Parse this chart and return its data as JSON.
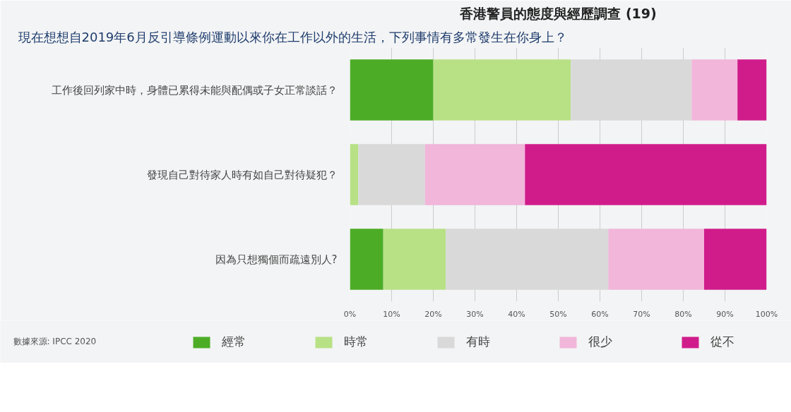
{
  "chart_data": {
    "type": "bar",
    "orientation": "horizontal",
    "stacked": true,
    "title": "香港警員的態度與經歷調查 (19)",
    "subtitle": "現在想想自2019年6月反引導條例運動以來你在工作以外的生活，下列事情有多常發生在你身上？",
    "categories": [
      "工作後回列家中時，身體已累得未能與配偶或子女正常談話？",
      "發現自己對待家人時有如自己對待疑犯？",
      "因為只想獨個而疏遠別人?"
    ],
    "series": [
      {
        "name": "經常",
        "color": "#4dac26",
        "values": [
          20,
          0,
          8
        ]
      },
      {
        "name": "時常",
        "color": "#b8e186",
        "values": [
          33,
          2,
          15
        ]
      },
      {
        "name": "有時",
        "color": "#d9d9d9",
        "values": [
          29,
          16,
          39
        ]
      },
      {
        "name": "很少",
        "color": "#f1b6da",
        "values": [
          11,
          24,
          23
        ]
      },
      {
        "name": "從不",
        "color": "#d01c8b",
        "values": [
          7,
          58,
          15
        ]
      }
    ],
    "xlim": [
      0,
      100
    ],
    "xticks": [
      {
        "value": 0,
        "label": "0%"
      },
      {
        "value": 10,
        "label": "10%"
      },
      {
        "value": 20,
        "label": "20%"
      },
      {
        "value": 30,
        "label": "30%"
      },
      {
        "value": 40,
        "label": "40%"
      },
      {
        "value": 50,
        "label": "50%"
      },
      {
        "value": 60,
        "label": "60%"
      },
      {
        "value": 70,
        "label": "70%"
      },
      {
        "value": 80,
        "label": "80%"
      },
      {
        "value": 90,
        "label": "90%"
      },
      {
        "value": 100,
        "label": "100%"
      }
    ],
    "grid": "x",
    "legend": "bottom",
    "annotations": [
      "數據來源: IPCC 2020"
    ]
  }
}
